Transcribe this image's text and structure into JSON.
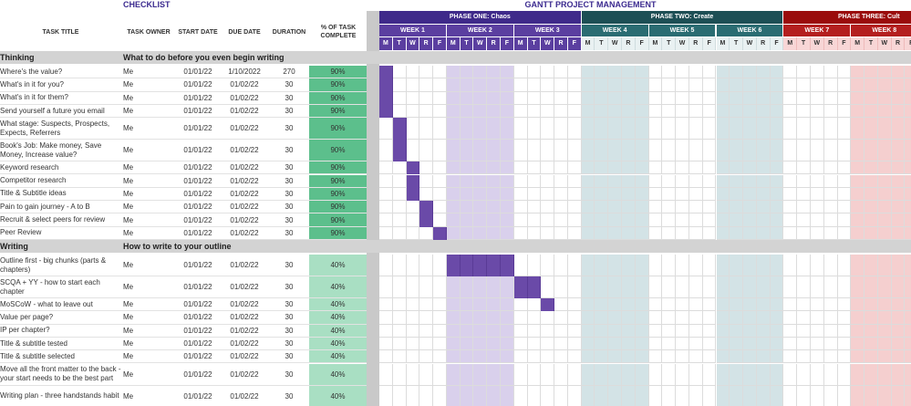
{
  "titles": {
    "checklist": "CHECKLIST",
    "gantt": "GANTT PROJECT MANAGEMENT"
  },
  "columns": {
    "task_title": "TASK TITLE",
    "task_owner": "TASK OWNER",
    "start_date": "START DATE",
    "due_date": "DUE DATE",
    "duration": "DURATION",
    "pct_complete": "% OF TASK COMPLETE"
  },
  "colors": {
    "phase1": "#3f2a8a",
    "phase2": "#1d4f55",
    "phase3": "#9a0c0c",
    "week_p1": "#5b3fa0",
    "week_p2": "#2a6c72",
    "week_p3": "#b41f1f",
    "day_p1": "#5b3fa0",
    "day_p2_bg": "#e9f1f2",
    "day_p3_bg": "#f8d6d6",
    "pct_high": "#5cbf8c",
    "pct_low": "#a9dfc3",
    "shade_p1": "#d9d0ec",
    "shade_p2": "#d3e3e6",
    "shade_p3": "#f5cfcf",
    "bar": "#6a4aa8"
  },
  "phases": [
    {
      "label": "PHASE ONE: Chaos"
    },
    {
      "label": "PHASE TWO: Create"
    },
    {
      "label": "PHASE THREE: Cult"
    }
  ],
  "weeks": [
    "WEEK 1",
    "WEEK 2",
    "WEEK 3",
    "WEEK 4",
    "WEEK 5",
    "WEEK 6",
    "WEEK 7",
    "WEEK 8"
  ],
  "days": [
    "M",
    "T",
    "W",
    "R",
    "F"
  ],
  "sections": [
    {
      "name": "Thinking",
      "subtitle": "What to do before you even begin writing",
      "tasks": [
        {
          "title": "Where's the value?",
          "owner": "Me",
          "start": "01/01/22",
          "due": "1/10/2022",
          "duration": "270",
          "pct": "90%",
          "bar_start": 0,
          "bar_len": 1
        },
        {
          "title": "What's in it for you?",
          "owner": "Me",
          "start": "01/01/22",
          "due": "01/02/22",
          "duration": "30",
          "pct": "90%",
          "bar_start": 0,
          "bar_len": 1
        },
        {
          "title": "What's in it for them?",
          "owner": "Me",
          "start": "01/01/22",
          "due": "01/02/22",
          "duration": "30",
          "pct": "90%",
          "bar_start": 0,
          "bar_len": 1
        },
        {
          "title": "Send yourself a future you email",
          "owner": "Me",
          "start": "01/01/22",
          "due": "01/02/22",
          "duration": "30",
          "pct": "90%",
          "bar_start": 0,
          "bar_len": 1
        },
        {
          "title": "What stage: Suspects, Prospects, Expects, Referrers",
          "owner": "Me",
          "start": "01/01/22",
          "due": "01/02/22",
          "duration": "30",
          "pct": "90%",
          "bar_start": 1,
          "bar_len": 1
        },
        {
          "title": "Book's Job: Make money, Save Money, Increase value?",
          "owner": "Me",
          "start": "01/01/22",
          "due": "01/02/22",
          "duration": "30",
          "pct": "90%",
          "bar_start": 1,
          "bar_len": 1
        },
        {
          "title": "Keyword research",
          "owner": "Me",
          "start": "01/01/22",
          "due": "01/02/22",
          "duration": "30",
          "pct": "90%",
          "bar_start": 2,
          "bar_len": 1
        },
        {
          "title": "Competitor research",
          "owner": "Me",
          "start": "01/01/22",
          "due": "01/02/22",
          "duration": "30",
          "pct": "90%",
          "bar_start": 2,
          "bar_len": 1
        },
        {
          "title": "Title & Subtitle ideas",
          "owner": "Me",
          "start": "01/01/22",
          "due": "01/02/22",
          "duration": "30",
          "pct": "90%",
          "bar_start": 2,
          "bar_len": 1
        },
        {
          "title": "Pain to gain journey - A to B",
          "owner": "Me",
          "start": "01/01/22",
          "due": "01/02/22",
          "duration": "30",
          "pct": "90%",
          "bar_start": 3,
          "bar_len": 1
        },
        {
          "title": "Recruit & select peers for review",
          "owner": "Me",
          "start": "01/01/22",
          "due": "01/02/22",
          "duration": "30",
          "pct": "90%",
          "bar_start": 3,
          "bar_len": 1
        },
        {
          "title": "Peer Review",
          "owner": "Me",
          "start": "01/01/22",
          "due": "01/02/22",
          "duration": "30",
          "pct": "90%",
          "bar_start": 4,
          "bar_len": 1
        }
      ]
    },
    {
      "name": "Writing",
      "subtitle": "How to write to your outline",
      "tasks": [
        {
          "title": "Outline first - big chunks (parts & chapters)",
          "owner": "Me",
          "start": "01/01/22",
          "due": "01/02/22",
          "duration": "30",
          "pct": "40%",
          "bar_start": 5,
          "bar_len": 5
        },
        {
          "title": "SCQA + YY - how to start each chapter",
          "owner": "Me",
          "start": "01/01/22",
          "due": "01/02/22",
          "duration": "30",
          "pct": "40%",
          "bar_start": 10,
          "bar_len": 2
        },
        {
          "title": "MoSCoW - what to leave out",
          "owner": "Me",
          "start": "01/01/22",
          "due": "01/02/22",
          "duration": "30",
          "pct": "40%",
          "bar_start": 12,
          "bar_len": 1
        },
        {
          "title": "Value per page?",
          "owner": "Me",
          "start": "01/01/22",
          "due": "01/02/22",
          "duration": "30",
          "pct": "40%",
          "bar_start": -1,
          "bar_len": 0
        },
        {
          "title": "IP per chapter?",
          "owner": "Me",
          "start": "01/01/22",
          "due": "01/02/22",
          "duration": "30",
          "pct": "40%",
          "bar_start": -1,
          "bar_len": 0
        },
        {
          "title": "Title & subtitle tested",
          "owner": "Me",
          "start": "01/01/22",
          "due": "01/02/22",
          "duration": "30",
          "pct": "40%",
          "bar_start": -1,
          "bar_len": 0
        },
        {
          "title": "Title & subtitle selected",
          "owner": "Me",
          "start": "01/01/22",
          "due": "01/02/22",
          "duration": "30",
          "pct": "40%",
          "bar_start": -1,
          "bar_len": 0
        },
        {
          "title": "Move all the front matter to the back - your start needs to be the best part",
          "owner": "Me",
          "start": "01/01/22",
          "due": "01/02/22",
          "duration": "30",
          "pct": "40%",
          "bar_start": -1,
          "bar_len": 0
        },
        {
          "title": "Writing plan - three handstands habit",
          "owner": "Me",
          "start": "01/01/22",
          "due": "01/02/22",
          "duration": "30",
          "pct": "40%",
          "bar_start": -1,
          "bar_len": 0
        }
      ]
    }
  ]
}
